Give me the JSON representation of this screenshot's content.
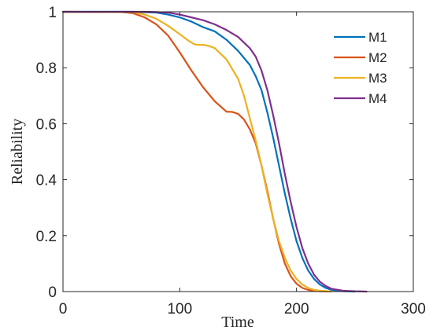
{
  "chart_data": {
    "type": "line",
    "title": "",
    "xlabel": "Time",
    "ylabel": "Reliability",
    "xlim": [
      0,
      300
    ],
    "ylim": [
      0,
      1
    ],
    "xticks": [
      "0",
      "100",
      "200",
      "300"
    ],
    "yticks": [
      "0",
      "0.2",
      "0.4",
      "0.6",
      "0.8",
      "1"
    ],
    "grid": false,
    "legend_position": "top-right",
    "series": [
      {
        "name": "M1",
        "color": "#0072BD",
        "x": [
          0,
          60,
          80,
          90,
          100,
          110,
          120,
          130,
          140,
          150,
          160,
          165,
          170,
          175,
          180,
          185,
          190,
          195,
          200,
          205,
          210,
          215,
          220,
          225,
          230,
          240,
          250
        ],
        "y": [
          1.0,
          1.0,
          0.997,
          0.99,
          0.98,
          0.965,
          0.945,
          0.93,
          0.9,
          0.86,
          0.81,
          0.77,
          0.72,
          0.64,
          0.55,
          0.45,
          0.35,
          0.26,
          0.18,
          0.12,
          0.075,
          0.045,
          0.025,
          0.013,
          0.006,
          0.001,
          0.0
        ]
      },
      {
        "name": "M2",
        "color": "#D95319",
        "x": [
          0,
          50,
          60,
          70,
          80,
          90,
          100,
          110,
          120,
          130,
          140,
          145,
          150,
          155,
          160,
          165,
          170,
          175,
          180,
          185,
          190,
          195,
          200,
          205,
          210,
          215,
          220,
          230
        ],
        "y": [
          1.0,
          0.999,
          0.995,
          0.98,
          0.955,
          0.915,
          0.855,
          0.79,
          0.73,
          0.68,
          0.643,
          0.642,
          0.635,
          0.615,
          0.58,
          0.53,
          0.45,
          0.36,
          0.26,
          0.17,
          0.1,
          0.055,
          0.028,
          0.013,
          0.006,
          0.003,
          0.001,
          0.0
        ]
      },
      {
        "name": "M3",
        "color": "#EDB120",
        "x": [
          0,
          60,
          70,
          80,
          90,
          100,
          108,
          112,
          115,
          120,
          125,
          130,
          140,
          150,
          155,
          160,
          165,
          170,
          175,
          180,
          185,
          190,
          195,
          200,
          205,
          210,
          215,
          220,
          230
        ],
        "y": [
          1.0,
          0.999,
          0.99,
          0.975,
          0.95,
          0.92,
          0.895,
          0.885,
          0.882,
          0.882,
          0.878,
          0.87,
          0.83,
          0.76,
          0.7,
          0.62,
          0.54,
          0.45,
          0.35,
          0.26,
          0.18,
          0.12,
          0.075,
          0.045,
          0.025,
          0.013,
          0.006,
          0.003,
          0.0
        ]
      },
      {
        "name": "M4",
        "color": "#7E2F8E",
        "x": [
          0,
          70,
          80,
          90,
          100,
          110,
          120,
          130,
          140,
          150,
          160,
          165,
          170,
          175,
          180,
          185,
          190,
          195,
          200,
          205,
          210,
          215,
          220,
          225,
          230,
          240,
          250,
          260
        ],
        "y": [
          1.0,
          1.0,
          0.999,
          0.997,
          0.99,
          0.98,
          0.97,
          0.955,
          0.935,
          0.91,
          0.87,
          0.84,
          0.79,
          0.72,
          0.63,
          0.53,
          0.42,
          0.32,
          0.23,
          0.155,
          0.1,
          0.06,
          0.035,
          0.02,
          0.01,
          0.003,
          0.001,
          0.0
        ]
      }
    ]
  }
}
